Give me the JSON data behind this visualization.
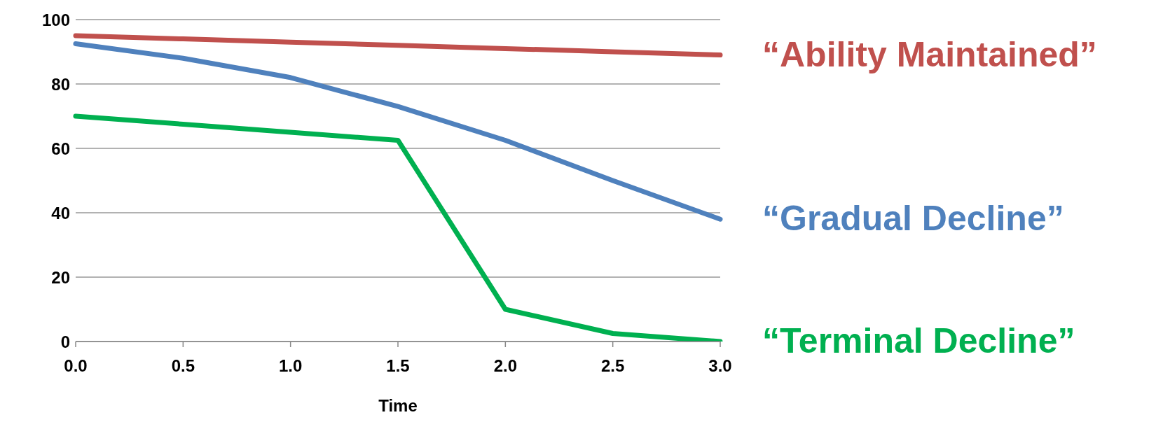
{
  "chart_data": {
    "type": "line",
    "xlabel": "Time",
    "categories": [
      "0.0",
      "0.5",
      "1.0",
      "1.5",
      "2.0",
      "2.5",
      "3.0"
    ],
    "series": [
      {
        "name": "“Ability Maintained”",
        "color": "#c0504d",
        "values": [
          95,
          94,
          93,
          92,
          91,
          90,
          89
        ]
      },
      {
        "name": "“Gradual Decline”",
        "color": "#4f81bd",
        "values": [
          92.5,
          88,
          82,
          73,
          62.5,
          50,
          38
        ]
      },
      {
        "name": "“Terminal Decline”",
        "color": "#00b050",
        "values": [
          70,
          67.5,
          65,
          62.5,
          10,
          2.5,
          0
        ]
      }
    ],
    "ylim": [
      0,
      100
    ],
    "yticks": [
      0,
      20,
      40,
      60,
      80,
      100
    ],
    "grid": "y",
    "marker": "none",
    "line_style": "solid"
  }
}
